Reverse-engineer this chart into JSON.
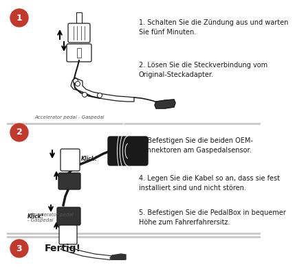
{
  "bg_color": "#ffffff",
  "divider_color": "#c8c8c8",
  "circle_color": "#c0392b",
  "circle_text_color": "#ffffff",
  "text_color": "#1a1a1a",
  "step1_text": "1. Schalten Sie die Zündung aus und warten\nSie fünf Minuten.",
  "step2_text": "2. Lösen Sie die Steckverbindung vom\nOriginal-Steckadapter.",
  "step3_text": "3. Befestigen Sie die beiden OEM-\nKonnektoren am Gaspedalsensor.",
  "step4_text": "4. Legen Sie die Kabel so an, dass sie fest\ninstalliert sind und nicht stören.",
  "step5_text": "5. Befestigen Sie die PedalBox in bequemer\nHöhe zum Fahrerfahrersitz.",
  "step6_text": "Fertig!",
  "caption1": "Accelerator pedal - Gaspedal",
  "caption2": "- Accelerator pedal\n- Gaspedal"
}
